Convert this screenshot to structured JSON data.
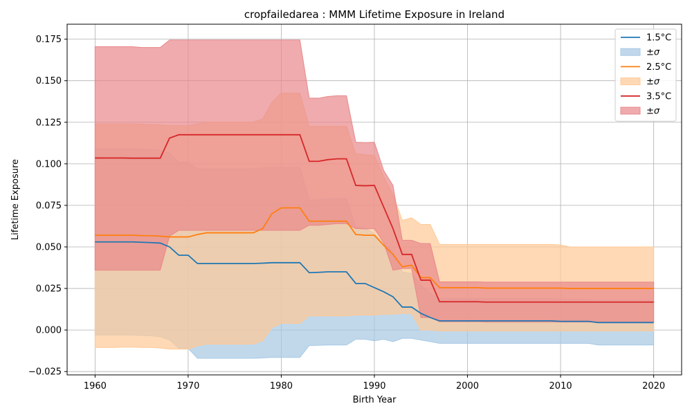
{
  "chart_data": {
    "type": "line",
    "title": "cropfailedarea : MMM Lifetime Exposure in Ireland",
    "xlabel": "Birth Year",
    "ylabel": "Lifetime Exposure",
    "xlim": [
      1957,
      2023
    ],
    "ylim": [
      -0.027,
      0.184
    ],
    "xticks": [
      1960,
      1970,
      1980,
      1990,
      2000,
      2010,
      2020
    ],
    "xtick_labels": [
      "1960",
      "1970",
      "1980",
      "1990",
      "2000",
      "2010",
      "2020"
    ],
    "yticks": [
      -0.025,
      0.0,
      0.025,
      0.05,
      0.075,
      0.1,
      0.125,
      0.15,
      0.175
    ],
    "ytick_labels": [
      "−0.025",
      "0.000",
      "0.025",
      "0.050",
      "0.075",
      "0.100",
      "0.125",
      "0.150",
      "0.175"
    ],
    "grid": true,
    "legend_position": "top-right",
    "x": [
      1960,
      1961,
      1962,
      1963,
      1964,
      1965,
      1966,
      1967,
      1968,
      1969,
      1970,
      1971,
      1972,
      1973,
      1974,
      1975,
      1976,
      1977,
      1978,
      1979,
      1980,
      1981,
      1982,
      1983,
      1984,
      1985,
      1986,
      1987,
      1988,
      1989,
      1990,
      1991,
      1992,
      1993,
      1994,
      1995,
      1996,
      1997,
      1998,
      1999,
      2000,
      2001,
      2002,
      2003,
      2004,
      2005,
      2006,
      2007,
      2008,
      2009,
      2010,
      2011,
      2012,
      2013,
      2014,
      2015,
      2016,
      2017,
      2018,
      2019,
      2020
    ],
    "series": [
      {
        "name": "1.5°C",
        "band_name": "±σ",
        "color": "#1f77b4",
        "band_color": "#a6c8e3",
        "values": [
          0.053,
          0.053,
          0.053,
          0.053,
          0.053,
          0.0528,
          0.0526,
          0.0523,
          0.05,
          0.045,
          0.045,
          0.04,
          0.04,
          0.04,
          0.04,
          0.04,
          0.04,
          0.04,
          0.0402,
          0.0405,
          0.0405,
          0.0405,
          0.0405,
          0.0345,
          0.0347,
          0.035,
          0.035,
          0.035,
          0.028,
          0.028,
          0.0255,
          0.023,
          0.02,
          0.0138,
          0.0138,
          0.01,
          0.0075,
          0.0055,
          0.0055,
          0.0055,
          0.0055,
          0.0055,
          0.0055,
          0.0055,
          0.0055,
          0.0055,
          0.0055,
          0.0055,
          0.0055,
          0.0055,
          0.0052,
          0.0052,
          0.0052,
          0.0052,
          0.0045,
          0.0045,
          0.0045,
          0.0045,
          0.0045,
          0.0045,
          0.0045
        ],
        "upper": [
          0.109,
          0.109,
          0.109,
          0.109,
          0.109,
          0.1088,
          0.1085,
          0.108,
          0.1065,
          0.101,
          0.101,
          0.097,
          0.097,
          0.097,
          0.097,
          0.097,
          0.097,
          0.097,
          0.0975,
          0.0978,
          0.0978,
          0.0978,
          0.0978,
          0.078,
          0.0785,
          0.079,
          0.079,
          0.079,
          0.062,
          0.0615,
          0.058,
          0.052,
          0.047,
          0.035,
          0.034,
          0.027,
          0.022,
          0.019,
          0.019,
          0.019,
          0.019,
          0.019,
          0.019,
          0.019,
          0.019,
          0.019,
          0.019,
          0.019,
          0.019,
          0.019,
          0.0185,
          0.0185,
          0.0185,
          0.0185,
          0.018,
          0.018,
          0.018,
          0.018,
          0.018,
          0.018,
          0.018
        ],
        "lower": [
          -0.003,
          -0.003,
          -0.003,
          -0.003,
          -0.003,
          -0.0033,
          -0.0035,
          -0.004,
          -0.006,
          -0.011,
          -0.011,
          -0.017,
          -0.017,
          -0.017,
          -0.017,
          -0.017,
          -0.017,
          -0.017,
          -0.0168,
          -0.0165,
          -0.0165,
          -0.0165,
          -0.0165,
          -0.0093,
          -0.0092,
          -0.009,
          -0.009,
          -0.009,
          -0.0055,
          -0.0055,
          -0.0065,
          -0.0055,
          -0.007,
          -0.005,
          -0.005,
          -0.006,
          -0.007,
          -0.008,
          -0.008,
          -0.008,
          -0.008,
          -0.008,
          -0.008,
          -0.008,
          -0.008,
          -0.008,
          -0.008,
          -0.008,
          -0.008,
          -0.008,
          -0.008,
          -0.008,
          -0.008,
          -0.008,
          -0.009,
          -0.009,
          -0.009,
          -0.009,
          -0.009,
          -0.009,
          -0.009
        ]
      },
      {
        "name": "2.5°C",
        "band_name": "±σ",
        "color": "#ff7f0e",
        "band_color": "#ffc995",
        "values": [
          0.057,
          0.057,
          0.057,
          0.057,
          0.057,
          0.0568,
          0.0567,
          0.0565,
          0.056,
          0.056,
          0.056,
          0.0575,
          0.0585,
          0.0585,
          0.0585,
          0.0585,
          0.0585,
          0.0585,
          0.061,
          0.07,
          0.0735,
          0.0735,
          0.0735,
          0.0655,
          0.0655,
          0.0655,
          0.0655,
          0.0655,
          0.0575,
          0.057,
          0.057,
          0.051,
          0.0455,
          0.038,
          0.039,
          0.0315,
          0.0315,
          0.0255,
          0.0255,
          0.0255,
          0.0255,
          0.0255,
          0.0252,
          0.0252,
          0.0252,
          0.0252,
          0.0252,
          0.0252,
          0.0252,
          0.0252,
          0.0252,
          0.025,
          0.025,
          0.025,
          0.025,
          0.025,
          0.025,
          0.025,
          0.025,
          0.025,
          0.025
        ],
        "upper": [
          0.124,
          0.124,
          0.124,
          0.124,
          0.124,
          0.1238,
          0.1236,
          0.1234,
          0.123,
          0.123,
          0.123,
          0.124,
          0.125,
          0.125,
          0.125,
          0.125,
          0.125,
          0.125,
          0.127,
          0.137,
          0.1425,
          0.1425,
          0.1425,
          0.1225,
          0.1225,
          0.1225,
          0.1225,
          0.1225,
          0.106,
          0.1055,
          0.105,
          0.0925,
          0.0815,
          0.066,
          0.0675,
          0.0635,
          0.0635,
          0.0515,
          0.0515,
          0.0515,
          0.0515,
          0.0515,
          0.0515,
          0.0515,
          0.0515,
          0.0515,
          0.0515,
          0.0515,
          0.0515,
          0.0515,
          0.0512,
          0.05,
          0.05,
          0.05,
          0.05,
          0.05,
          0.05,
          0.05,
          0.05,
          0.05,
          0.05
        ],
        "lower": [
          -0.0105,
          -0.0105,
          -0.0105,
          -0.0103,
          -0.0103,
          -0.0105,
          -0.0105,
          -0.0108,
          -0.0115,
          -0.0115,
          -0.0115,
          -0.0095,
          -0.0085,
          -0.0085,
          -0.0085,
          -0.0085,
          -0.0085,
          -0.0085,
          -0.0065,
          0.0015,
          0.004,
          0.004,
          0.004,
          0.0085,
          0.0085,
          0.0085,
          0.0085,
          0.0085,
          0.009,
          0.009,
          0.009,
          0.0095,
          0.0095,
          0.01,
          0.01,
          0.0,
          0.0,
          -0.0005,
          -0.0005,
          -0.0005,
          -0.0005,
          -0.0005,
          -0.0005,
          -0.0005,
          -0.0005,
          -0.0005,
          -0.0005,
          -0.0005,
          -0.0005,
          -0.0005,
          -0.0005,
          -0.0005,
          -0.0005,
          -0.0005,
          -0.0005,
          -0.0005,
          -0.0005,
          -0.0005,
          -0.0005,
          -0.0005,
          -0.0005
        ]
      },
      {
        "name": "3.5°C",
        "band_name": "±σ",
        "color": "#d62728",
        "band_color": "#e8888a",
        "values": [
          0.1035,
          0.1035,
          0.1035,
          0.1035,
          0.1034,
          0.1034,
          0.1034,
          0.1034,
          0.1155,
          0.1175,
          0.1175,
          0.1175,
          0.1175,
          0.1175,
          0.1175,
          0.1175,
          0.1175,
          0.1175,
          0.1175,
          0.1175,
          0.1175,
          0.1175,
          0.1175,
          0.1015,
          0.1015,
          0.1025,
          0.103,
          0.103,
          0.087,
          0.0868,
          0.087,
          0.074,
          0.061,
          0.0455,
          0.0455,
          0.03,
          0.03,
          0.017,
          0.017,
          0.017,
          0.017,
          0.017,
          0.0168,
          0.0168,
          0.0168,
          0.0168,
          0.0168,
          0.0168,
          0.0168,
          0.0168,
          0.0168,
          0.0168,
          0.0168,
          0.0168,
          0.0168,
          0.0168,
          0.0168,
          0.0168,
          0.0168,
          0.0168,
          0.0168
        ],
        "upper": [
          0.1705,
          0.1705,
          0.1705,
          0.1705,
          0.1705,
          0.17,
          0.17,
          0.17,
          0.1745,
          0.1745,
          0.1745,
          0.1745,
          0.1745,
          0.1745,
          0.1745,
          0.1745,
          0.1745,
          0.1745,
          0.1745,
          0.1745,
          0.1745,
          0.1745,
          0.1745,
          0.1395,
          0.1395,
          0.1405,
          0.141,
          0.141,
          0.113,
          0.1128,
          0.113,
          0.096,
          0.087,
          0.054,
          0.054,
          0.052,
          0.052,
          0.029,
          0.029,
          0.029,
          0.029,
          0.029,
          0.0288,
          0.0288,
          0.0288,
          0.0288,
          0.0288,
          0.0288,
          0.0288,
          0.0288,
          0.0288,
          0.0288,
          0.0288,
          0.0288,
          0.0288,
          0.0288,
          0.0288,
          0.0288,
          0.0288,
          0.0288,
          0.0288
        ],
        "lower": [
          0.036,
          0.036,
          0.036,
          0.036,
          0.036,
          0.036,
          0.036,
          0.036,
          0.0565,
          0.06,
          0.06,
          0.06,
          0.06,
          0.06,
          0.06,
          0.06,
          0.06,
          0.06,
          0.06,
          0.06,
          0.06,
          0.06,
          0.06,
          0.063,
          0.063,
          0.0635,
          0.064,
          0.064,
          0.061,
          0.0608,
          0.061,
          0.0525,
          0.036,
          0.037,
          0.037,
          0.0075,
          0.0075,
          0.005,
          0.005,
          0.005,
          0.005,
          0.005,
          0.0048,
          0.0048,
          0.0048,
          0.0048,
          0.0048,
          0.0048,
          0.0048,
          0.0048,
          0.0048,
          0.0048,
          0.0048,
          0.0048,
          0.0048,
          0.0048,
          0.0048,
          0.0048,
          0.0048,
          0.0048,
          0.0048
        ]
      }
    ]
  }
}
